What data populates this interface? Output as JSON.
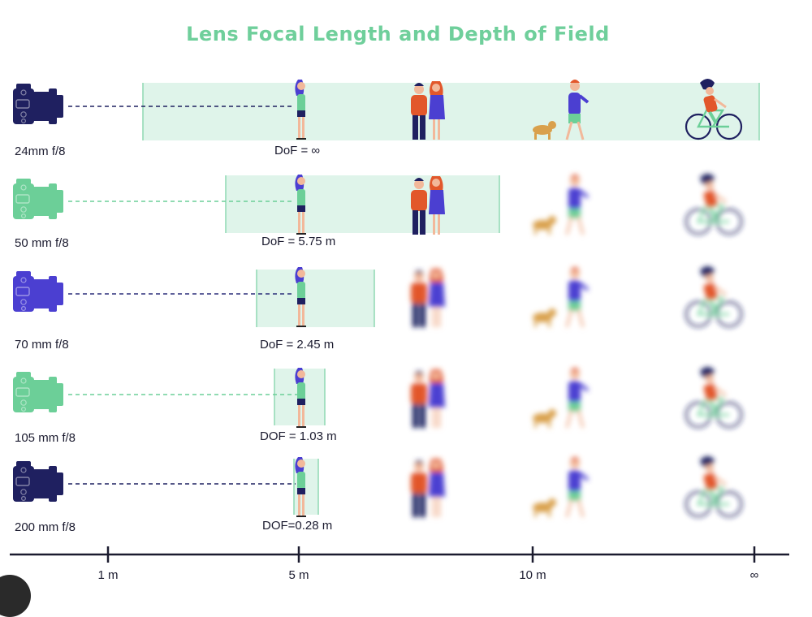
{
  "title": "Lens Focal Length and Depth of Field",
  "rows": [
    {
      "lens": "24mm f/8",
      "dof_label": "DoF = ∞",
      "camera_color": "#1f2060",
      "line_color": "#1f2060"
    },
    {
      "lens": "50 mm f/8",
      "dof_label": "DoF = 5.75 m",
      "camera_color": "#6ccf98",
      "line_color": "#6ccf98"
    },
    {
      "lens": "70 mm f/8",
      "dof_label": "DoF = 2.45 m",
      "camera_color": "#4b3fd1",
      "line_color": "#2c2f7a"
    },
    {
      "lens": "105 mm f/8",
      "dof_label": "DOF = 1.03 m",
      "camera_color": "#6ccf98",
      "line_color": "#6ccf98"
    },
    {
      "lens": "200 mm  f/8",
      "dof_label": "DOF=0.28 m",
      "camera_color": "#1f2060",
      "line_color": "#1f2060"
    }
  ],
  "axis": {
    "ticks": [
      "1 m",
      "5 m",
      "10 m",
      "∞"
    ]
  },
  "colors": {
    "title": "#6fcf9b",
    "dof_zone": "#dff4ea",
    "dof_border": "#8fd9b2",
    "axis": "#1b1b2f",
    "figure_purple": "#4b3fd1",
    "figure_green": "#6ccf98",
    "figure_orange": "#e2572b",
    "dog": "#d9a04c",
    "hair": "#1f2060"
  }
}
